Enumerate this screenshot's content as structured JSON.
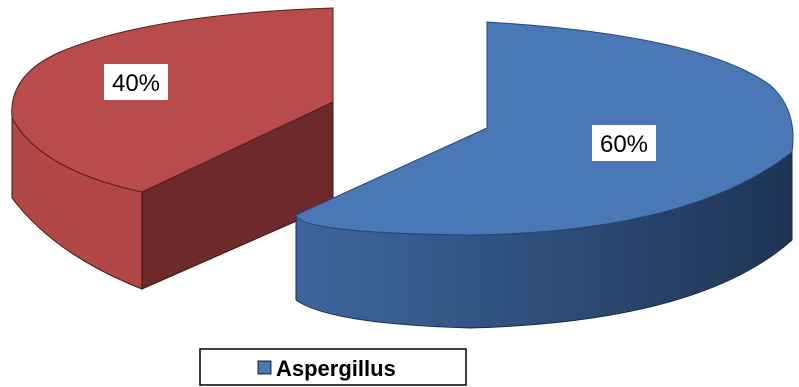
{
  "chart_data": {
    "type": "pie",
    "style": "3d-exploded",
    "title": "",
    "slices": [
      {
        "label": "",
        "value": 60,
        "data_label": "60%",
        "color": "#4A78B6",
        "side_color_light": "#3F679E",
        "side_color_dark": "#1E3455"
      },
      {
        "label": "",
        "value": 40,
        "data_label": "40%",
        "color": "#B84B4B",
        "side_color_light": "#B24747",
        "side_color_dark": "#6E2A2A"
      }
    ],
    "legend": {
      "position": "bottom",
      "entries": [
        {
          "label": "Aspergillus",
          "color": "#4A78B6"
        }
      ]
    }
  }
}
